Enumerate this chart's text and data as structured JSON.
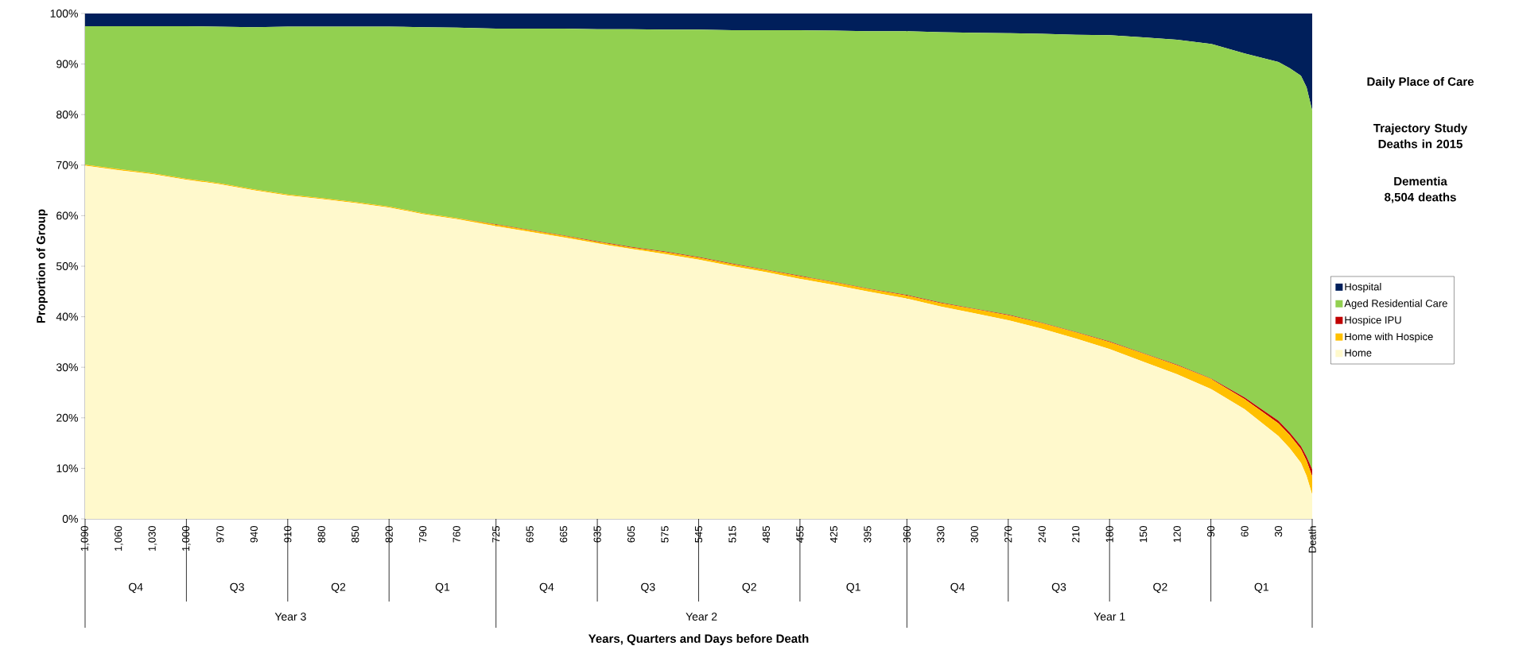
{
  "chart_data": {
    "type": "area",
    "stacked": true,
    "title": "Daily Place of Care",
    "subtitle": "Trajectory Study Deaths in 2015",
    "ylabel": "Proportion of Group",
    "x": [
      1090,
      1060,
      1030,
      1000,
      970,
      940,
      910,
      880,
      850,
      820,
      790,
      760,
      725,
      695,
      665,
      635,
      605,
      575,
      545,
      515,
      485,
      455,
      425,
      395,
      360,
      330,
      300,
      270,
      240,
      210,
      180,
      150,
      120,
      90,
      60,
      30,
      20,
      10,
      5,
      0
    ],
    "series": [
      {
        "name": "Home",
        "color": "#fff9cc",
        "values": [
          69.9,
          69.0,
          68.2,
          67.1,
          66.2,
          65.0,
          64.0,
          63.3,
          62.5,
          61.6,
          60.3,
          59.3,
          57.9,
          56.8,
          55.7,
          54.5,
          53.4,
          52.4,
          51.3,
          50.0,
          48.8,
          47.5,
          46.3,
          45.0,
          43.6,
          42.0,
          40.7,
          39.3,
          37.6,
          35.7,
          33.6,
          31.1,
          28.6,
          25.7,
          21.7,
          16.4,
          14.0,
          11.1,
          8.5,
          4.8
        ]
      },
      {
        "name": "Home with Hospice",
        "color": "#ffc000",
        "values": [
          0.2,
          0.2,
          0.2,
          0.2,
          0.2,
          0.2,
          0.2,
          0.2,
          0.2,
          0.2,
          0.2,
          0.2,
          0.3,
          0.3,
          0.3,
          0.3,
          0.3,
          0.4,
          0.4,
          0.4,
          0.4,
          0.5,
          0.5,
          0.5,
          0.6,
          0.7,
          0.8,
          1.0,
          1.1,
          1.2,
          1.4,
          1.6,
          1.8,
          2.0,
          2.0,
          2.5,
          2.6,
          2.7,
          3.0,
          3.6
        ]
      },
      {
        "name": "Hospice IPU",
        "color": "#c00000",
        "values": [
          0,
          0,
          0,
          0,
          0,
          0,
          0,
          0,
          0,
          0,
          0,
          0,
          0.1,
          0.1,
          0.1,
          0.1,
          0.1,
          0.1,
          0.1,
          0.1,
          0.1,
          0.1,
          0.1,
          0.1,
          0.1,
          0.1,
          0.1,
          0.1,
          0.1,
          0.1,
          0.1,
          0.1,
          0.1,
          0.1,
          0.3,
          0.5,
          0.5,
          0.6,
          0.8,
          1.4
        ]
      },
      {
        "name": "Aged Residential Care",
        "color": "#92d050",
        "values": [
          27.4,
          28.3,
          29.1,
          30.2,
          31.0,
          32.1,
          33.2,
          33.9,
          34.7,
          35.6,
          36.8,
          37.7,
          38.7,
          39.8,
          40.9,
          42.0,
          43.1,
          43.9,
          45.0,
          46.2,
          47.4,
          48.6,
          49.7,
          50.9,
          52.2,
          53.5,
          54.6,
          55.7,
          57.2,
          58.8,
          60.6,
          62.5,
          64.3,
          66.2,
          68.1,
          71.0,
          72.1,
          73.3,
          73.1,
          71.0
        ]
      },
      {
        "name": "Hospital",
        "color": "#001f5b",
        "values": [
          2.5,
          2.5,
          2.5,
          2.5,
          2.6,
          2.7,
          2.6,
          2.6,
          2.6,
          2.6,
          2.7,
          2.8,
          3.0,
          3.0,
          3.0,
          3.1,
          3.1,
          3.2,
          3.2,
          3.3,
          3.3,
          3.3,
          3.4,
          3.5,
          3.5,
          3.7,
          3.8,
          3.9,
          4.0,
          4.2,
          4.3,
          4.7,
          5.2,
          6.0,
          7.9,
          9.6,
          10.8,
          12.3,
          14.6,
          19.2
        ]
      }
    ],
    "xlim": [
      1090,
      0
    ],
    "ylim": [
      0,
      100
    ],
    "xticks": [
      {
        "value": 1090,
        "label": "1,090"
      },
      {
        "value": 1060,
        "label": "1,060"
      },
      {
        "value": 1030,
        "label": "1,030"
      },
      {
        "value": 1000,
        "label": "1,000"
      },
      970,
      940,
      910,
      880,
      850,
      820,
      790,
      760,
      725,
      695,
      665,
      635,
      605,
      575,
      545,
      515,
      485,
      455,
      425,
      395,
      360,
      330,
      300,
      270,
      240,
      210,
      180,
      150,
      120,
      90,
      60,
      30,
      {
        "value": 0,
        "label": "Death"
      }
    ],
    "yticks": [
      {
        "value": 0,
        "label": "0%"
      },
      {
        "value": 10,
        "label": "10%"
      },
      {
        "value": 20,
        "label": "20%"
      },
      {
        "value": 30,
        "label": "30%"
      },
      {
        "value": 40,
        "label": "40%"
      },
      {
        "value": 50,
        "label": "50%"
      },
      {
        "value": 60,
        "label": "60%"
      },
      {
        "value": 70,
        "label": "70%"
      },
      {
        "value": 80,
        "label": "80%"
      },
      {
        "value": 90,
        "label": "90%"
      },
      {
        "value": 100,
        "label": "100%"
      }
    ],
    "ref_lines": [
      {
        "axis": "x",
        "value": 725,
        "color": "#000000"
      },
      {
        "axis": "x",
        "value": 360,
        "color": "#000000"
      }
    ],
    "legend": "right",
    "annotations": [
      "Dementia 8,504 deaths",
      "Q4",
      "Q3",
      "Q2",
      "Q1",
      "Q4",
      "Q3",
      "Q2",
      "Q1",
      "Q4",
      "Q3",
      "Q2",
      "Q1",
      "Year 3",
      "Year 2",
      "Year 1",
      "Years, Quarters and Days before Death"
    ]
  }
}
